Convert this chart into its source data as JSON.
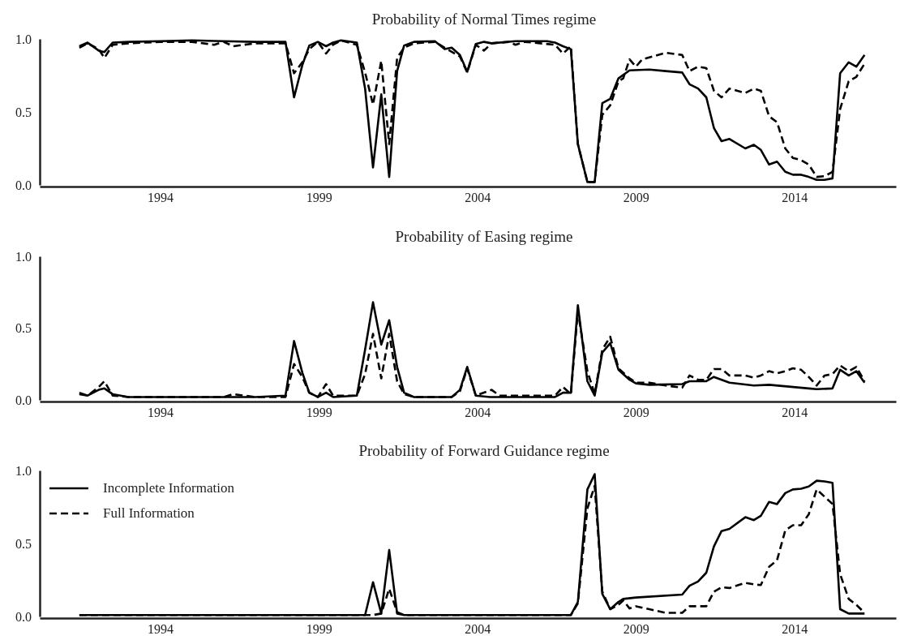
{
  "chart_data": [
    {
      "type": "line",
      "title": "Probability of Normal Times regime",
      "xlim": [
        1990.2,
        2017.2
      ],
      "xticks": [
        1994,
        1999,
        2004,
        2009,
        2014
      ],
      "ylim": [
        0,
        1
      ],
      "yticks": [
        {
          "value": 0,
          "label": "0.0"
        },
        {
          "value": 0.5,
          "label": "0.5"
        },
        {
          "value": 1,
          "label": "1.0"
        }
      ],
      "grid": false,
      "legend": false,
      "series": [
        {
          "color": "#000000",
          "line_style": "solid",
          "x": [
            1991.45,
            1991.71,
            1992.06,
            1992.24,
            1992.5,
            1993,
            1994,
            1995,
            1996,
            1997,
            1997.95,
            1998.22,
            1998.48,
            1998.7,
            1998.97,
            1999.23,
            1999.45,
            1999.7,
            2000.2,
            2000.46,
            2000.71,
            2000.97,
            2001.22,
            2001.47,
            2001.69,
            2002.0,
            2002.66,
            2002.97,
            2003.19,
            2003.45,
            2003.68,
            2003.95,
            2004.21,
            2004.45,
            2005.2,
            2006.2,
            2006.45,
            2006.7,
            2006.95,
            2007.17,
            2007.47,
            2007.7,
            2007.94,
            2008.19,
            2008.45,
            2008.8,
            2009.42,
            2009.94,
            2010.46,
            2010.69,
            2010.96,
            2011.22,
            2011.46,
            2011.7,
            2011.95,
            2012.45,
            2012.72,
            2012.94,
            2013.2,
            2013.45,
            2013.71,
            2013.95,
            2014.21,
            2014.45,
            2014.7,
            2014.95,
            2015.2,
            2015.44,
            2015.71,
            2015.95,
            2016.21
          ],
          "values": [
            0.95,
            0.975,
            0.92,
            0.91,
            0.975,
            0.98,
            0.985,
            0.99,
            0.985,
            0.98,
            0.98,
            0.6,
            0.82,
            0.955,
            0.98,
            0.95,
            0.975,
            0.99,
            0.975,
            0.66,
            0.12,
            0.62,
            0.055,
            0.78,
            0.955,
            0.98,
            0.985,
            0.93,
            0.94,
            0.89,
            0.775,
            0.965,
            0.98,
            0.97,
            0.985,
            0.985,
            0.975,
            0.95,
            0.93,
            0.28,
            0.02,
            0.02,
            0.56,
            0.59,
            0.73,
            0.785,
            0.79,
            0.78,
            0.77,
            0.69,
            0.66,
            0.6,
            0.39,
            0.3,
            0.315,
            0.25,
            0.275,
            0.24,
            0.14,
            0.16,
            0.09,
            0.07,
            0.07,
            0.055,
            0.035,
            0.035,
            0.045,
            0.765,
            0.84,
            0.81,
            0.89
          ]
        },
        {
          "color": "#000000",
          "line_style": "dashed",
          "x": [
            1991.45,
            1991.71,
            1992.06,
            1992.24,
            1992.5,
            1993,
            1994,
            1995,
            1995.7,
            1996,
            1996.3,
            1997,
            1997.95,
            1998.22,
            1998.48,
            1998.7,
            1998.97,
            1999.23,
            1999.45,
            1999.7,
            2000.2,
            2000.46,
            2000.71,
            2000.97,
            2001.22,
            2001.47,
            2001.69,
            2002.0,
            2002.66,
            2002.97,
            2003.45,
            2003.68,
            2003.95,
            2004.21,
            2004.45,
            2005,
            2005.2,
            2005.5,
            2006.45,
            2006.7,
            2006.95,
            2007.17,
            2007.47,
            2007.7,
            2007.94,
            2008.19,
            2008.45,
            2008.6,
            2008.8,
            2009.0,
            2009.2,
            2009.94,
            2010.46,
            2010.69,
            2010.96,
            2011.22,
            2011.46,
            2011.7,
            2011.95,
            2012.45,
            2012.72,
            2012.94,
            2013.2,
            2013.45,
            2013.71,
            2013.95,
            2014.21,
            2014.45,
            2014.7,
            2014.95,
            2015.2,
            2015.44,
            2015.71,
            2015.95,
            2016.21
          ],
          "values": [
            0.94,
            0.97,
            0.93,
            0.87,
            0.96,
            0.97,
            0.98,
            0.98,
            0.96,
            0.98,
            0.95,
            0.97,
            0.97,
            0.765,
            0.84,
            0.93,
            0.98,
            0.9,
            0.96,
            0.99,
            0.96,
            0.77,
            0.55,
            0.85,
            0.28,
            0.87,
            0.94,
            0.97,
            0.98,
            0.94,
            0.88,
            0.77,
            0.96,
            0.92,
            0.97,
            0.98,
            0.96,
            0.98,
            0.96,
            0.9,
            0.95,
            0.28,
            0.02,
            0.02,
            0.48,
            0.545,
            0.71,
            0.73,
            0.86,
            0.81,
            0.86,
            0.905,
            0.89,
            0.78,
            0.81,
            0.8,
            0.645,
            0.6,
            0.66,
            0.63,
            0.66,
            0.645,
            0.47,
            0.43,
            0.25,
            0.185,
            0.17,
            0.14,
            0.055,
            0.06,
            0.09,
            0.52,
            0.71,
            0.74,
            0.83
          ]
        }
      ]
    },
    {
      "type": "line",
      "title": "Probability of Easing regime",
      "xlim": [
        1990.2,
        2017.2
      ],
      "xticks": [
        1994,
        1999,
        2004,
        2009,
        2014
      ],
      "ylim": [
        0,
        1
      ],
      "yticks": [
        {
          "value": 0,
          "label": "0.0"
        },
        {
          "value": 0.5,
          "label": "0.5"
        },
        {
          "value": 1,
          "label": "1.0"
        }
      ],
      "grid": false,
      "legend": false,
      "series": [
        {
          "color": "#000000",
          "line_style": "solid",
          "x": [
            1991.45,
            1991.71,
            1992.06,
            1992.24,
            1992.5,
            1993,
            1994,
            1995,
            1996,
            1997,
            1997.95,
            1998.22,
            1998.48,
            1998.7,
            1998.97,
            1999.23,
            1999.45,
            2000.2,
            2000.46,
            2000.71,
            2000.97,
            2001.22,
            2001.47,
            2001.69,
            2002.0,
            2003.19,
            2003.45,
            2003.68,
            2003.95,
            2004.4,
            2006.45,
            2006.7,
            2006.95,
            2007.17,
            2007.47,
            2007.7,
            2007.94,
            2008.19,
            2008.45,
            2008.8,
            2009.0,
            2009.42,
            2010.46,
            2010.69,
            2011.22,
            2011.46,
            2011.95,
            2012.72,
            2013.2,
            2014.45,
            2014.7,
            2015.2,
            2015.44,
            2015.71,
            2015.95,
            2016.21
          ],
          "values": [
            0.05,
            0.03,
            0.07,
            0.08,
            0.04,
            0.02,
            0.02,
            0.02,
            0.02,
            0.02,
            0.03,
            0.41,
            0.19,
            0.05,
            0.02,
            0.05,
            0.02,
            0.03,
            0.35,
            0.68,
            0.385,
            0.555,
            0.23,
            0.05,
            0.02,
            0.02,
            0.07,
            0.23,
            0.03,
            0.02,
            0.02,
            0.05,
            0.05,
            0.66,
            0.13,
            0.03,
            0.33,
            0.395,
            0.21,
            0.14,
            0.115,
            0.105,
            0.11,
            0.13,
            0.13,
            0.16,
            0.12,
            0.1,
            0.105,
            0.08,
            0.075,
            0.08,
            0.21,
            0.17,
            0.2,
            0.12
          ]
        },
        {
          "color": "#000000",
          "line_style": "dashed",
          "x": [
            1991.45,
            1991.71,
            1992.06,
            1992.24,
            1992.5,
            1993,
            1994,
            1995,
            1996,
            1996.3,
            1997,
            1997.95,
            1998.22,
            1998.48,
            1998.7,
            1998.97,
            1999.23,
            1999.45,
            2000.2,
            2000.46,
            2000.71,
            2000.97,
            2001.22,
            2001.47,
            2001.69,
            2002.0,
            2003.19,
            2003.45,
            2003.68,
            2003.95,
            2004.45,
            2004.7,
            2006.45,
            2006.7,
            2006.95,
            2007.17,
            2007.47,
            2007.7,
            2007.94,
            2008.19,
            2008.45,
            2008.8,
            2009.0,
            2009.42,
            2009.94,
            2010.46,
            2010.69,
            2010.96,
            2011.22,
            2011.46,
            2011.7,
            2011.95,
            2012.45,
            2012.72,
            2012.94,
            2013.2,
            2013.45,
            2013.71,
            2013.95,
            2014.21,
            2014.45,
            2014.7,
            2014.95,
            2015.2,
            2015.44,
            2015.71,
            2015.95,
            2016.21
          ],
          "values": [
            0.04,
            0.03,
            0.09,
            0.13,
            0.03,
            0.02,
            0.02,
            0.02,
            0.02,
            0.04,
            0.02,
            0.02,
            0.25,
            0.16,
            0.05,
            0.02,
            0.11,
            0.03,
            0.03,
            0.18,
            0.46,
            0.15,
            0.46,
            0.13,
            0.04,
            0.02,
            0.02,
            0.06,
            0.22,
            0.03,
            0.07,
            0.03,
            0.03,
            0.09,
            0.04,
            0.62,
            0.2,
            0.04,
            0.35,
            0.44,
            0.22,
            0.15,
            0.12,
            0.12,
            0.1,
            0.085,
            0.17,
            0.14,
            0.14,
            0.215,
            0.215,
            0.17,
            0.17,
            0.155,
            0.17,
            0.2,
            0.185,
            0.2,
            0.22,
            0.21,
            0.16,
            0.1,
            0.17,
            0.18,
            0.24,
            0.2,
            0.23,
            0.13
          ]
        }
      ]
    },
    {
      "type": "line",
      "title": "Probability of Forward Guidance regime",
      "xlim": [
        1990.2,
        2017.2
      ],
      "xticks": [
        1994,
        1999,
        2004,
        2009,
        2014
      ],
      "ylim": [
        0,
        1
      ],
      "yticks": [
        {
          "value": 0,
          "label": "0.0"
        },
        {
          "value": 0.5,
          "label": "0.5"
        },
        {
          "value": 1,
          "label": "1.0"
        }
      ],
      "grid": false,
      "legend": "top left",
      "series": [
        {
          "name": "Incomplete Information",
          "color": "#000000",
          "line_style": "solid",
          "x": [
            1991.45,
            1995,
            2000.46,
            2000.71,
            2000.97,
            2001.22,
            2001.47,
            2001.69,
            2004,
            2006.95,
            2007.17,
            2007.47,
            2007.7,
            2007.94,
            2008.19,
            2008.45,
            2008.6,
            2009.0,
            2010.46,
            2010.69,
            2010.96,
            2011.22,
            2011.46,
            2011.7,
            2011.95,
            2012.45,
            2012.72,
            2012.94,
            2013.2,
            2013.45,
            2013.71,
            2013.95,
            2014.21,
            2014.45,
            2014.7,
            2014.95,
            2015.2,
            2015.44,
            2015.71,
            2016.21
          ],
          "values": [
            0.01,
            0.01,
            0.01,
            0.235,
            0.02,
            0.455,
            0.02,
            0.01,
            0.01,
            0.01,
            0.1,
            0.87,
            0.975,
            0.155,
            0.05,
            0.1,
            0.12,
            0.13,
            0.15,
            0.21,
            0.24,
            0.3,
            0.48,
            0.585,
            0.6,
            0.68,
            0.66,
            0.69,
            0.785,
            0.77,
            0.845,
            0.87,
            0.875,
            0.89,
            0.93,
            0.925,
            0.915,
            0.05,
            0.02,
            0.02
          ]
        },
        {
          "name": "Full Information",
          "color": "#000000",
          "line_style": "dashed",
          "x": [
            1991.45,
            1995,
            2000.71,
            2000.97,
            2001.22,
            2001.47,
            2001.69,
            2004,
            2006.95,
            2007.17,
            2007.47,
            2007.7,
            2007.94,
            2008.19,
            2008.45,
            2008.6,
            2008.8,
            2009.0,
            2009.42,
            2009.94,
            2010.46,
            2010.69,
            2010.96,
            2011.22,
            2011.46,
            2011.7,
            2011.95,
            2012.45,
            2012.72,
            2012.94,
            2013.2,
            2013.45,
            2013.71,
            2013.95,
            2014.21,
            2014.45,
            2014.7,
            2014.95,
            2015.2,
            2015.44,
            2015.71,
            2015.95,
            2016.21
          ],
          "values": [
            0.01,
            0.01,
            0.01,
            0.02,
            0.19,
            0.03,
            0.01,
            0.01,
            0.01,
            0.09,
            0.74,
            0.895,
            0.17,
            0.05,
            0.08,
            0.11,
            0.055,
            0.07,
            0.05,
            0.025,
            0.025,
            0.07,
            0.07,
            0.07,
            0.17,
            0.2,
            0.195,
            0.23,
            0.22,
            0.215,
            0.34,
            0.385,
            0.59,
            0.625,
            0.625,
            0.7,
            0.87,
            0.82,
            0.77,
            0.29,
            0.12,
            0.08,
            0.025
          ]
        }
      ]
    }
  ]
}
